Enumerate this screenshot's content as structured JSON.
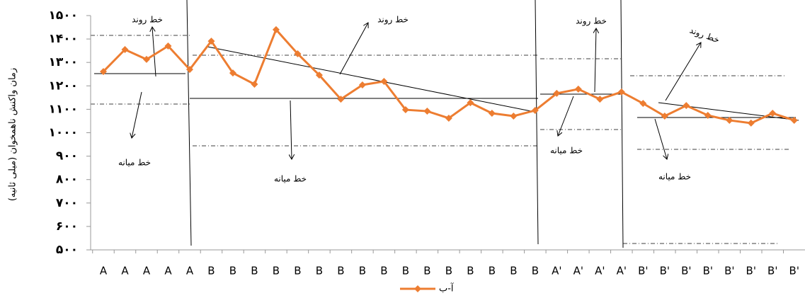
{
  "chart_data": {
    "type": "line",
    "y_label": "زمان واکنش ناهمخوان (میلی ثانیه)",
    "categories": [
      "A",
      "A",
      "A",
      "A",
      "A",
      "B",
      "B",
      "B",
      "B",
      "B",
      "B",
      "B",
      "B",
      "B",
      "B",
      "B",
      "B",
      "B",
      "B",
      "B",
      "B",
      "A'",
      "A'",
      "A'",
      "A'",
      "B'",
      "B'",
      "B'",
      "B'",
      "B'",
      "B'",
      "B'",
      "B'"
    ],
    "series": [
      {
        "name": "آ-ب",
        "color": "#ed7d31",
        "values": [
          1261,
          1355,
          1313,
          1370,
          1270,
          1391,
          1255,
          1207,
          1440,
          1337,
          1246,
          1143,
          1204,
          1219,
          1098,
          1092,
          1062,
          1128,
          1083,
          1071,
          1095,
          1168,
          1186,
          1143,
          1174,
          1125,
          1071,
          1116,
          1074,
          1053,
          1041,
          1083,
          1053
        ]
      }
    ],
    "ylim": [
      500,
      1500
    ],
    "yticks": [
      {
        "value": 500,
        "label": "۵۰۰"
      },
      {
        "value": 600,
        "label": "۶۰۰"
      },
      {
        "value": 700,
        "label": "۷۰۰"
      },
      {
        "value": 800,
        "label": "۸۰۰"
      },
      {
        "value": 900,
        "label": "۹۰۰"
      },
      {
        "value": 1000,
        "label": "۱۰۰۰"
      },
      {
        "value": 1100,
        "label": "۱۱۰۰"
      },
      {
        "value": 1200,
        "label": "۱۲۰۰"
      },
      {
        "value": 1300,
        "label": "۱۳۰۰"
      },
      {
        "value": 1400,
        "label": "۱۴۰۰"
      },
      {
        "value": 1500,
        "label": "۱۵۰۰"
      }
    ],
    "legend": "bottom",
    "annotations": [
      "خط روند",
      "خط میانه",
      "خط روند",
      "خط میانه",
      "خط روند",
      "خط میانه",
      "خط روند",
      "خط میانه"
    ]
  }
}
